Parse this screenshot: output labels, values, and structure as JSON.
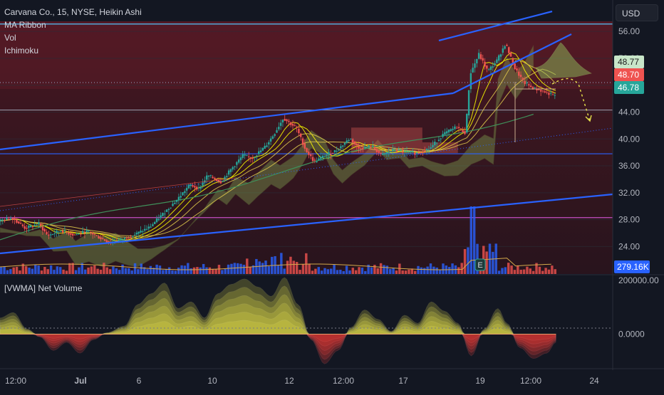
{
  "header": {
    "symbol_line": "Carvana Co., 15, NYSE, Heikin Ashi",
    "indicators": [
      "MA Ribbon",
      "Vol",
      "Ichimoku"
    ],
    "currency_button": "USD"
  },
  "lower_pane": {
    "title": "[VWMA] Net Volume",
    "axis_ticks": [
      "200000.00",
      "0.0000"
    ]
  },
  "colors": {
    "background": "#131722",
    "bull": "#26a69a",
    "bear": "#ef5350",
    "trendline": "#2962ff",
    "ribbon": "#f5f500",
    "net_volume_pos": "#e8e24a",
    "net_volume_neg": "#e53935",
    "upper_band": "#4fc3f7",
    "zone": "#7a1f2b"
  },
  "chart_data": [
    {
      "type": "candlestick",
      "title": "Carvana Co., 15, NYSE, Heikin Ashi",
      "x_ticks": [
        "12:00",
        "Jul",
        "6",
        "10",
        "12",
        "12:00",
        "17",
        "19",
        "12:00",
        "24"
      ],
      "y_ticks": [
        24,
        28,
        32,
        36,
        40,
        44,
        48,
        52,
        56
      ],
      "ylim": [
        21.5,
        57.5
      ],
      "price_labels": [
        {
          "value": 48.77,
          "text": "48.77",
          "color": "#c8e6c9"
        },
        {
          "value": 48.7,
          "text": "48.70",
          "color": "#ef5350"
        },
        {
          "value": 46.78,
          "text": "46.78",
          "color": "#26a69a"
        }
      ],
      "volume_label": "279.16K",
      "event_marker": "E",
      "close_path": [
        [
          0,
          27.8
        ],
        [
          3,
          28.3
        ],
        [
          6,
          26.7
        ],
        [
          9,
          27.4
        ],
        [
          11,
          25.6
        ],
        [
          14,
          26.4
        ],
        [
          17,
          25.7
        ],
        [
          20,
          26.3
        ],
        [
          23,
          25.2
        ],
        [
          25,
          24.6
        ],
        [
          28,
          25.1
        ],
        [
          31,
          25.9
        ],
        [
          34,
          26.9
        ],
        [
          37,
          28.9
        ],
        [
          40,
          30.9
        ],
        [
          43,
          33.2
        ],
        [
          45,
          32.6
        ],
        [
          47,
          34.6
        ],
        [
          50,
          33.6
        ],
        [
          52,
          35.3
        ],
        [
          55,
          37.6
        ],
        [
          57,
          37.1
        ],
        [
          60,
          38.9
        ],
        [
          62,
          40.8
        ],
        [
          64,
          43.1
        ],
        [
          67,
          41.6
        ],
        [
          69,
          38.4
        ],
        [
          71,
          36.6
        ],
        [
          73,
          37.4
        ],
        [
          76,
          38.3
        ],
        [
          79,
          40.1
        ],
        [
          81,
          38.6
        ],
        [
          84,
          38.9
        ],
        [
          86,
          37.6
        ],
        [
          89,
          38.4
        ],
        [
          91,
          38.1
        ],
        [
          94,
          37.9
        ],
        [
          97,
          38.6
        ],
        [
          100,
          40.7
        ],
        [
          103,
          41.8
        ],
        [
          105,
          40.9
        ],
        [
          106,
          49.6
        ],
        [
          108,
          52.6
        ],
        [
          110,
          50.1
        ],
        [
          112,
          51.6
        ],
        [
          114,
          54.2
        ],
        [
          116,
          50.6
        ],
        [
          118,
          48.5
        ],
        [
          120,
          47.6
        ],
        [
          122,
          47.2
        ],
        [
          124,
          46.7
        ],
        [
          125,
          46.4
        ]
      ]
    },
    {
      "type": "area",
      "title": "[VWMA] Net Volume",
      "y_ticks": [
        200000,
        0
      ],
      "ylim": [
        -120000,
        205000
      ],
      "values": [
        [
          0,
          60000
        ],
        [
          3,
          80000
        ],
        [
          6,
          20000
        ],
        [
          9,
          -10000
        ],
        [
          12,
          -60000
        ],
        [
          15,
          -30000
        ],
        [
          18,
          -70000
        ],
        [
          21,
          -20000
        ],
        [
          24,
          5000
        ],
        [
          28,
          30000
        ],
        [
          31,
          110000
        ],
        [
          34,
          150000
        ],
        [
          37,
          190000
        ],
        [
          40,
          95000
        ],
        [
          43,
          120000
        ],
        [
          46,
          60000
        ],
        [
          49,
          150000
        ],
        [
          52,
          185000
        ],
        [
          55,
          205000
        ],
        [
          58,
          175000
        ],
        [
          61,
          140000
        ],
        [
          64,
          210000
        ],
        [
          67,
          110000
        ],
        [
          70,
          -20000
        ],
        [
          73,
          -110000
        ],
        [
          76,
          -60000
        ],
        [
          79,
          25000
        ],
        [
          82,
          90000
        ],
        [
          85,
          55000
        ],
        [
          88,
          10000
        ],
        [
          91,
          70000
        ],
        [
          94,
          40000
        ],
        [
          97,
          120000
        ],
        [
          100,
          85000
        ],
        [
          103,
          40000
        ],
        [
          106,
          -80000
        ],
        [
          109,
          20000
        ],
        [
          112,
          95000
        ],
        [
          114,
          40000
        ],
        [
          117,
          -50000
        ],
        [
          120,
          -90000
        ],
        [
          123,
          -70000
        ],
        [
          125,
          -30000
        ]
      ]
    }
  ]
}
